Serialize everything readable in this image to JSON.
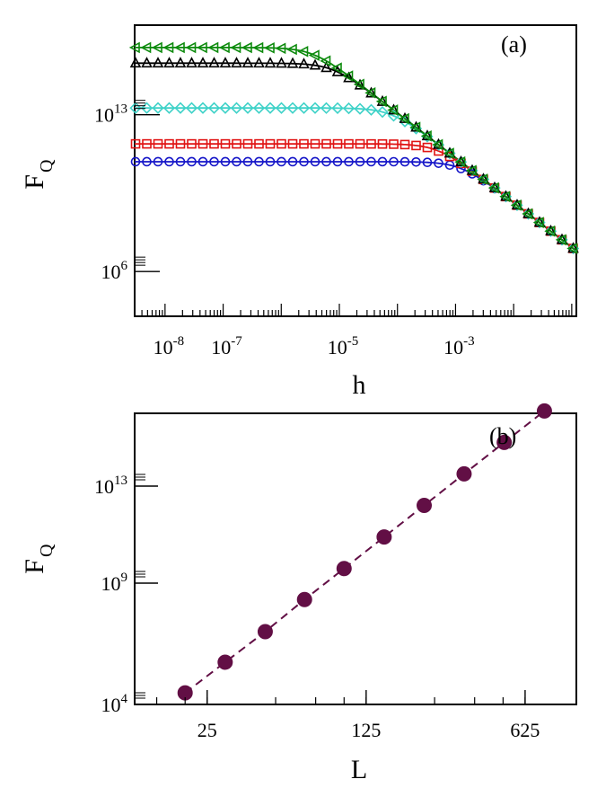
{
  "chart_data": [
    {
      "type": "line",
      "panel_label": "(a)",
      "xlabel": "h",
      "ylabel": "F",
      "ylabel_subscript": "Q",
      "x_scale": "log",
      "y_scale": "log",
      "xlim": [
        3e-09,
        0.12
      ],
      "ylim": [
        10000.0,
        1e+17
      ],
      "x_ticks": [
        {
          "mantissa": "10",
          "exponent": "-8",
          "value": 1e-08
        },
        {
          "mantissa": "10",
          "exponent": "-7",
          "value": 1e-07
        },
        {
          "mantissa": "10",
          "exponent": "-5",
          "value": 1e-05
        },
        {
          "mantissa": "10",
          "exponent": "-3",
          "value": 0.001
        }
      ],
      "y_ticks": [
        {
          "mantissa": "10",
          "exponent": "13",
          "value": 10000000000000.0
        },
        {
          "mantissa": "10",
          "exponent": "6",
          "value": 1000000.0
        }
      ],
      "series": [
        {
          "color": "#1515c8",
          "marker": "circle",
          "plateau": 80000000000.0
        },
        {
          "color": "#e01414",
          "marker": "square",
          "plateau": 500000000000.0
        },
        {
          "color": "#3fd2c8",
          "marker": "diamond",
          "plateau": 20000000000000.0
        },
        {
          "color": "#000000",
          "marker": "triangle-up",
          "plateau": 2000000000000000.0
        },
        {
          "color": "#0c8a0c",
          "marker": "triangle-left",
          "plateau": 1e+16
        }
      ],
      "asymptote": {
        "description": "F_Q ~ c / h^2",
        "coefficient": 120000.0
      },
      "legend": "none",
      "grid": false
    },
    {
      "type": "scatter",
      "panel_label": "(b)",
      "xlabel": "L",
      "ylabel": "F",
      "ylabel_subscript": "Q",
      "x_scale": "log",
      "y_scale": "log",
      "xlim": [
        12,
        1050
      ],
      "ylim": [
        10000.0,
        1e+16
      ],
      "x_ticks": [
        {
          "label": "25",
          "value": 25
        },
        {
          "label": "125",
          "value": 125
        },
        {
          "label": "625",
          "value": 625
        }
      ],
      "y_ticks": [
        {
          "mantissa": "10",
          "exponent": "13",
          "value": 10000000000000.0
        },
        {
          "mantissa": "10",
          "exponent": "9",
          "value": 1000000000.0
        },
        {
          "mantissa": "10",
          "exponent": "4",
          "value": 10000.0
        }
      ],
      "x": [
        20,
        30,
        45,
        67,
        100,
        150,
        225,
        337,
        506,
        760
      ],
      "y": [
        30000.0,
        550000.0,
        10000000.0,
        210000000.0,
        4000000000.0,
        80000000000.0,
        1600000000000.0,
        32000000000000.0,
        630000000000000.0,
        1.25e+16
      ],
      "marker_color": "#620f45",
      "fit_line": {
        "style": "dashed",
        "color": "#620f45"
      },
      "legend": "none",
      "grid": false
    }
  ]
}
